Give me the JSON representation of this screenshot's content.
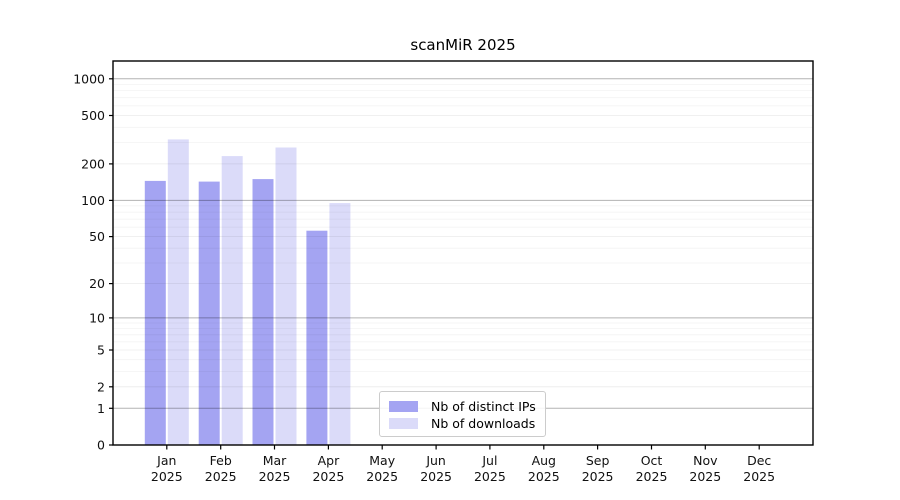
{
  "title": "scanMiR 2025",
  "chart_data": {
    "type": "bar",
    "title": "scanMiR 2025",
    "y_scale": "log1p",
    "ylim": [
      0,
      1400
    ],
    "grid": "horizontal",
    "legend_position": "inside-bottom-center",
    "categories": [
      "Jan",
      "Feb",
      "Mar",
      "Apr",
      "May",
      "Jun",
      "Jul",
      "Aug",
      "Sep",
      "Oct",
      "Nov",
      "Dec"
    ],
    "category_year": "2025",
    "y_ticks": [
      0,
      1,
      2,
      5,
      10,
      20,
      50,
      100,
      200,
      500,
      1000
    ],
    "y_minor_ticks": [
      3,
      4,
      6,
      7,
      8,
      9,
      30,
      40,
      60,
      70,
      80,
      90,
      300,
      400,
      600,
      700,
      800,
      900
    ],
    "series": [
      {
        "name": "Nb of distinct IPs",
        "color": "#a4a4f2",
        "values": [
          145,
          143,
          150,
          56,
          null,
          null,
          null,
          null,
          null,
          null,
          null,
          null
        ]
      },
      {
        "name": "Nb of downloads",
        "color": "#dbdbf9",
        "values": [
          318,
          232,
          273,
          95,
          null,
          null,
          null,
          null,
          null,
          null,
          null,
          null
        ]
      }
    ]
  }
}
